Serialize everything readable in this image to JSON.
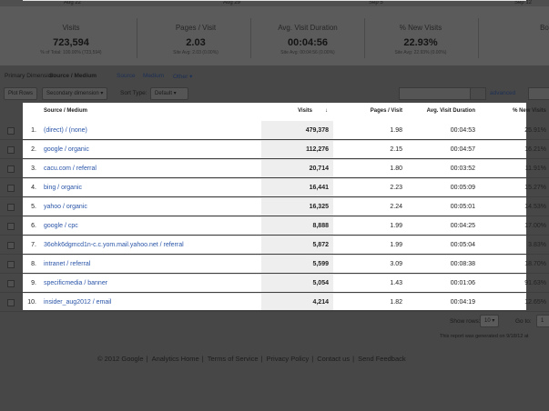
{
  "timeline": [
    "Aug 22",
    "Aug 29",
    "Sep 5",
    "Sep 12"
  ],
  "summary": [
    {
      "label": "Visits",
      "value": "723,594",
      "note": "% of Total: 100.00% (723,594)"
    },
    {
      "label": "Pages / Visit",
      "value": "2.03",
      "note": "Site Avg: 2.03 (0.00%)"
    },
    {
      "label": "Avg. Visit Duration",
      "value": "00:04:56",
      "note": "Site Avg: 00:04:56 (0.00%)"
    },
    {
      "label": "% New Visits",
      "value": "22.93%",
      "note": "Site Avg: 22.93% (0.00%)"
    },
    {
      "label": "Bo"
    }
  ],
  "dimension": {
    "label": "Primary Dimension:",
    "selected": "Source / Medium",
    "options": [
      "Source",
      "Medium",
      "Other"
    ]
  },
  "toolbar": {
    "plot_rows": "Plot Rows",
    "secondary": "Secondary dimension",
    "sort_label": "Sort Type:",
    "sort_value": "Default",
    "advanced": "advanced"
  },
  "table": {
    "columns": [
      "Source / Medium",
      "Visits",
      "Pages / Visit",
      "Avg. Visit Duration",
      "% New Visits"
    ],
    "rows": [
      [
        "1.",
        "(direct) / (none)",
        "479,378",
        "1.98",
        "00:04:53",
        "25.91%"
      ],
      [
        "2.",
        "google / organic",
        "112,276",
        "2.15",
        "00:04:57",
        "16.21%"
      ],
      [
        "3.",
        "cacu.com / referral",
        "20,714",
        "1.80",
        "00:03:52",
        "11.91%"
      ],
      [
        "4.",
        "bing / organic",
        "16,441",
        "2.23",
        "00:05:09",
        "15.27%"
      ],
      [
        "5.",
        "yahoo / organic",
        "16,325",
        "2.24",
        "00:05:01",
        "14.53%"
      ],
      [
        "6.",
        "google / cpc",
        "8,888",
        "1.99",
        "00:04:25",
        "17.00%"
      ],
      [
        "7.",
        "36ohk6dgmcd1n-c.c.yom.mail.yahoo.net / referral",
        "5,872",
        "1.99",
        "00:05:04",
        "3.83%"
      ],
      [
        "8.",
        "intranet / referral",
        "5,599",
        "3.09",
        "00:08:38",
        "18.70%"
      ],
      [
        "9.",
        "specificmedia / banner",
        "5,054",
        "1.43",
        "00:01:06",
        "91.63%"
      ],
      [
        "10.",
        "insider_aug2012 / email",
        "4,214",
        "1.82",
        "00:04:19",
        "12.65%"
      ]
    ]
  },
  "pagination": {
    "show_rows": "Show rows:",
    "rows": "10",
    "goto": "Go to:",
    "page": "1"
  },
  "generated": "This report was generated on 9/18/12 at",
  "footer": [
    "© 2012 Google",
    "Analytics Home",
    "Terms of Service",
    "Privacy Policy",
    "Contact us",
    "Send Feedback"
  ]
}
